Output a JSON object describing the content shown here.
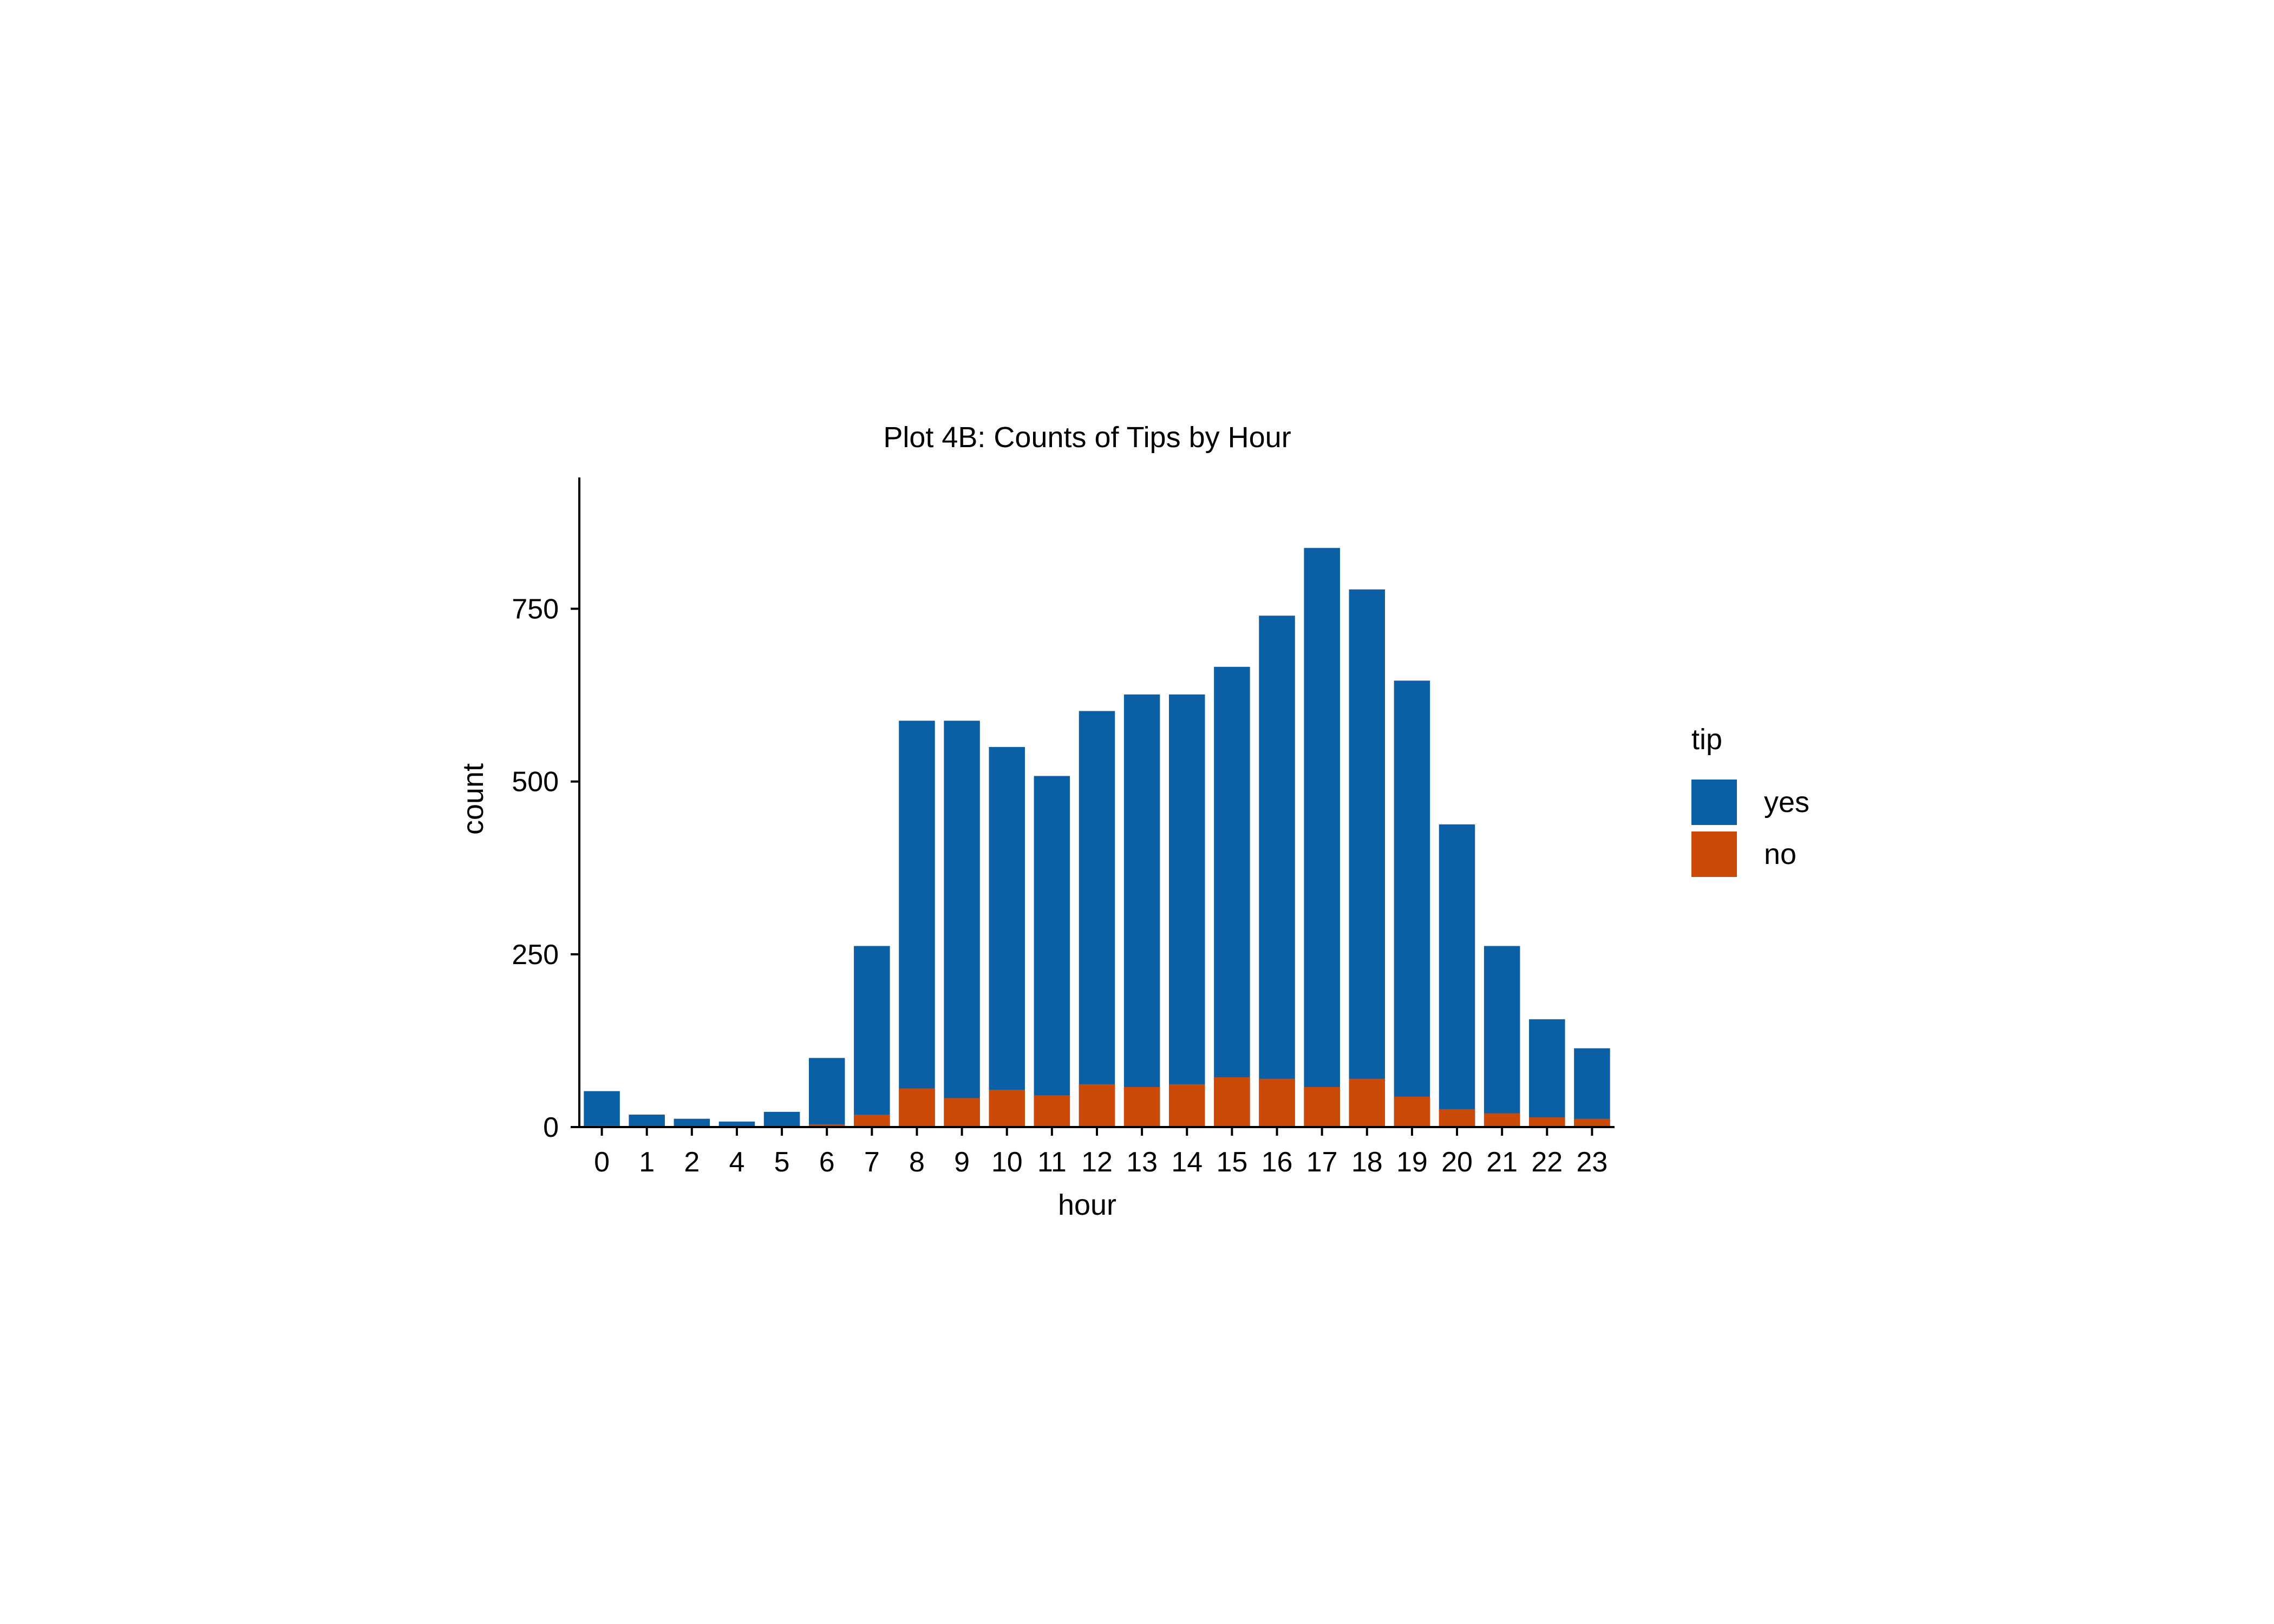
{
  "chart_data": {
    "type": "bar",
    "stacked": true,
    "title": "Plot 4B: Counts of Tips by Hour",
    "xlabel": "hour",
    "ylabel": "count",
    "categories": [
      "0",
      "1",
      "2",
      "4",
      "5",
      "6",
      "7",
      "8",
      "9",
      "10",
      "11",
      "12",
      "13",
      "14",
      "15",
      "16",
      "17",
      "18",
      "19",
      "20",
      "21",
      "22",
      "23"
    ],
    "series": [
      {
        "name": "yes",
        "color": "#0b5fa5",
        "values": [
          52,
          18,
          12,
          8,
          22,
          100,
          262,
          588,
          588,
          550,
          508,
          602,
          626,
          626,
          666,
          740,
          838,
          778,
          646,
          438,
          262,
          156,
          114
        ]
      },
      {
        "name": "no",
        "color": "#cc4a08",
        "values": [
          2,
          0,
          0,
          0,
          0,
          4,
          18,
          56,
          42,
          54,
          46,
          62,
          58,
          62,
          72,
          70,
          58,
          70,
          44,
          26,
          20,
          14,
          12
        ]
      }
    ],
    "ylim": [
      0,
      940
    ],
    "yticks": [
      0,
      250,
      500,
      750
    ],
    "grid": false,
    "legend": {
      "title": "tip",
      "position": "right",
      "entries": [
        "yes",
        "no"
      ]
    }
  }
}
